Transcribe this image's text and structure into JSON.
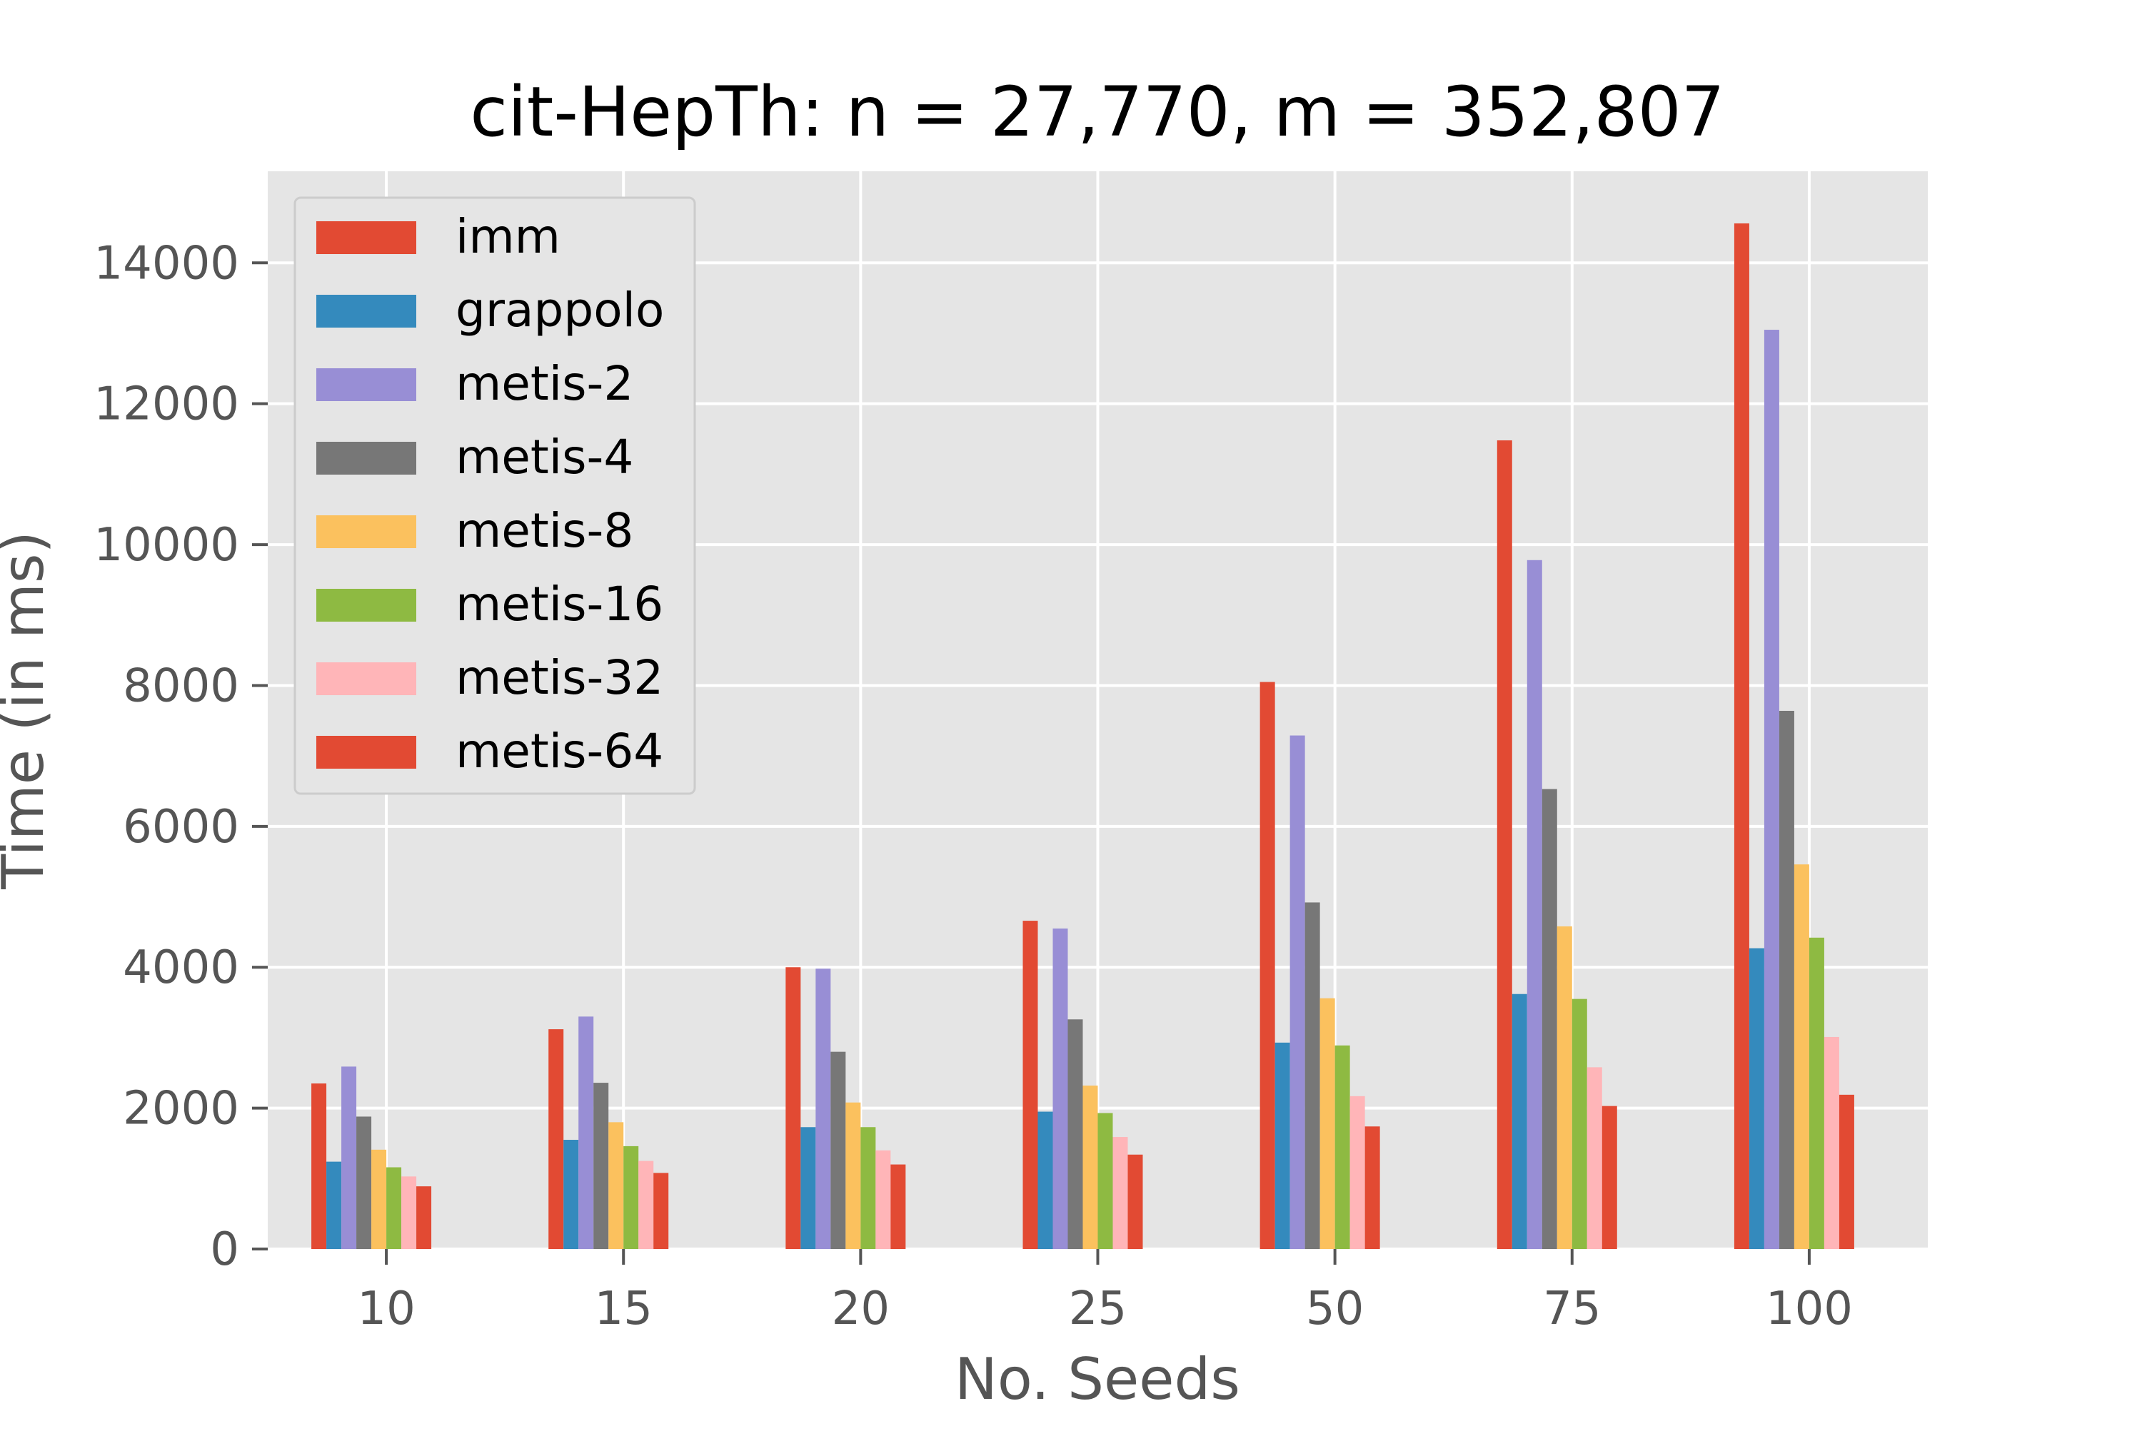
{
  "chart_data": {
    "type": "bar",
    "title": "cit-HepTh: n = 27,770, m = 352,807",
    "xlabel": "No. Seeds",
    "ylabel": "Time (in ms)",
    "ylim": [
      0,
      15300
    ],
    "yticks": [
      0,
      2000,
      4000,
      6000,
      8000,
      10000,
      12000,
      14000
    ],
    "grid": true,
    "legend_position": "top-left",
    "background": "#e5e5e5",
    "categories": [
      "10",
      "15",
      "20",
      "25",
      "50",
      "75",
      "100"
    ],
    "series": [
      {
        "name": "imm",
        "color": "#e24a33",
        "values": [
          2350,
          3120,
          4000,
          4660,
          8050,
          11480,
          14560
        ]
      },
      {
        "name": "grappolo",
        "color": "#348abd",
        "values": [
          1240,
          1550,
          1730,
          1950,
          2930,
          3620,
          4270
        ]
      },
      {
        "name": "metis-2",
        "color": "#988ed5",
        "values": [
          2590,
          3300,
          3980,
          4550,
          7290,
          9780,
          13050
        ]
      },
      {
        "name": "metis-4",
        "color": "#777777",
        "values": [
          1880,
          2360,
          2800,
          3260,
          4920,
          6530,
          7640
        ]
      },
      {
        "name": "metis-8",
        "color": "#fbc15e",
        "values": [
          1410,
          1800,
          2080,
          2320,
          3560,
          4580,
          5460
        ]
      },
      {
        "name": "metis-16",
        "color": "#8eba42",
        "values": [
          1160,
          1460,
          1730,
          1930,
          2890,
          3550,
          4420
        ]
      },
      {
        "name": "metis-32",
        "color": "#ffb5b8",
        "values": [
          1030,
          1250,
          1400,
          1590,
          2170,
          2580,
          3010
        ]
      },
      {
        "name": "metis-64",
        "color": "#e24a33",
        "values": [
          890,
          1080,
          1200,
          1340,
          1740,
          2030,
          2190
        ]
      }
    ]
  }
}
